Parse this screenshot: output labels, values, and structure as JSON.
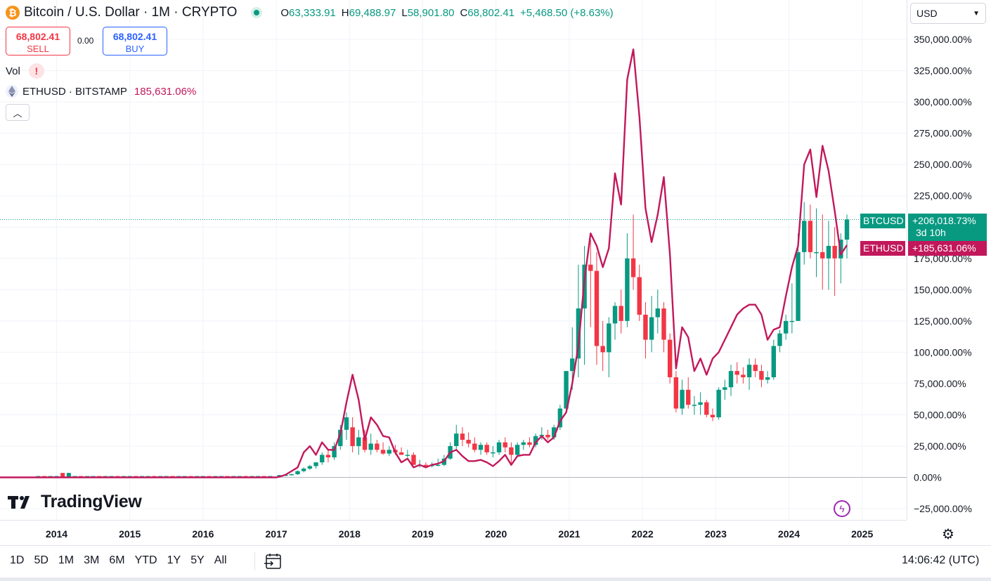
{
  "header": {
    "title": "Bitcoin / U.S. Dollar · 1M · CRYPTO",
    "logo_icon": "bitcoin-logo-icon",
    "ohlc": {
      "o_label": "O",
      "o_value": "63,333.91",
      "h_label": "H",
      "h_value": "69,488.97",
      "l_label": "L",
      "l_value": "58,901.80",
      "c_label": "C",
      "c_value": "68,802.41",
      "change": "+5,468.50 (+8.63%)"
    }
  },
  "trade": {
    "sell_price": "68,802.41",
    "sell_label": "SELL",
    "spread": "0.00",
    "buy_price": "68,802.41",
    "buy_label": "BUY"
  },
  "indicators": {
    "vol_label": "Vol",
    "vol_warning": "!",
    "compare_symbol": "ETHUSD · BITSTAMP",
    "compare_value": "185,631.06%"
  },
  "currency_select": {
    "value": "USD"
  },
  "price_tags": {
    "btc_symbol": "BTCUSD",
    "btc_value": "+206,018.73%",
    "btc_countdown": "3d 10h",
    "eth_symbol": "ETHUSD",
    "eth_value": "+185,631.06%"
  },
  "branding": {
    "name": "TradingView"
  },
  "footer": {
    "ranges": [
      "1D",
      "5D",
      "1M",
      "3M",
      "6M",
      "YTD",
      "1Y",
      "5Y",
      "All"
    ],
    "clock": "14:06:42 (UTC)"
  },
  "colors": {
    "up": "#089981",
    "down": "#f23645",
    "eth_line": "#c2185b",
    "grid": "#f0f3fa"
  },
  "chart_data": {
    "type": "line",
    "scale": "percent",
    "ylim": [
      -25000,
      350000
    ],
    "y_ticks": [
      "350,000.00%",
      "325,000.00%",
      "300,000.00%",
      "275,000.00%",
      "250,000.00%",
      "225,000.00%",
      "200,000.00%",
      "175,000.00%",
      "150,000.00%",
      "125,000.00%",
      "100,000.00%",
      "75,000.00%",
      "50,000.00%",
      "25,000.00%",
      "0.00%",
      "−25,000.00%"
    ],
    "x_ticks": [
      "2014",
      "2015",
      "2016",
      "2017",
      "2018",
      "2019",
      "2020",
      "2021",
      "2022",
      "2023",
      "2024",
      "2025"
    ],
    "grid": true,
    "series": [
      {
        "name": "BTCUSD",
        "style": "candlestick",
        "last_value": 206018.73,
        "x": [
          "2017-01",
          "2017-02",
          "2017-03",
          "2017-04",
          "2017-05",
          "2017-06",
          "2017-07",
          "2017-08",
          "2017-09",
          "2017-10",
          "2017-11",
          "2017-12",
          "2018-01",
          "2018-02",
          "2018-03",
          "2018-04",
          "2018-05",
          "2018-06",
          "2018-07",
          "2018-08",
          "2018-09",
          "2018-10",
          "2018-11",
          "2018-12",
          "2019-01",
          "2019-02",
          "2019-03",
          "2019-04",
          "2019-05",
          "2019-06",
          "2019-07",
          "2019-08",
          "2019-09",
          "2019-10",
          "2019-11",
          "2019-12",
          "2020-01",
          "2020-02",
          "2020-03",
          "2020-04",
          "2020-05",
          "2020-06",
          "2020-07",
          "2020-08",
          "2020-09",
          "2020-10",
          "2020-11",
          "2020-12",
          "2021-01",
          "2021-02",
          "2021-03",
          "2021-04",
          "2021-05",
          "2021-06",
          "2021-07",
          "2021-08",
          "2021-09",
          "2021-10",
          "2021-11",
          "2021-12",
          "2022-01",
          "2022-02",
          "2022-03",
          "2022-04",
          "2022-05",
          "2022-06",
          "2022-07",
          "2022-08",
          "2022-09",
          "2022-10",
          "2022-11",
          "2022-12",
          "2023-01",
          "2023-02",
          "2023-03",
          "2023-04",
          "2023-05",
          "2023-06",
          "2023-07",
          "2023-08",
          "2023-09",
          "2023-10",
          "2023-11",
          "2023-12",
          "2024-01",
          "2024-02",
          "2024-03",
          "2024-04",
          "2024-05",
          "2024-06",
          "2024-07",
          "2024-08",
          "2024-09",
          "2024-10"
        ],
        "open": [
          1500,
          1800,
          2000,
          2500,
          5000,
          7000,
          9000,
          12000,
          18000,
          16000,
          25000,
          38000,
          40000,
          25000,
          32000,
          22000,
          27000,
          22000,
          19000,
          22000,
          20000,
          18000,
          18000,
          10000,
          10000,
          9000,
          10000,
          10000,
          15000,
          25000,
          35000,
          30000,
          27000,
          22000,
          26000,
          20000,
          20000,
          28000,
          24000,
          18000,
          26000,
          28000,
          26000,
          33000,
          34000,
          32000,
          40000,
          55000,
          85000,
          95000,
          135000,
          170000,
          165000,
          105000,
          100000,
          123000,
          137000,
          125000,
          175000,
          160000,
          130000,
          110000,
          128000,
          135000,
          110000,
          80000,
          55000,
          70000,
          58000,
          58000,
          60000,
          50000,
          48000,
          70000,
          72000,
          85000,
          82000,
          80000,
          90000,
          85000,
          78000,
          80000,
          105000,
          115000,
          125000,
          125000,
          180000,
          205000,
          180000,
          180000,
          175000,
          185000,
          175000,
          190000
        ],
        "high": [
          2000,
          2500,
          3000,
          5500,
          8000,
          10000,
          12000,
          20000,
          22000,
          28000,
          42000,
          52000,
          48000,
          38000,
          38000,
          35000,
          30000,
          28000,
          25000,
          26000,
          24000,
          22000,
          20000,
          14000,
          12000,
          12000,
          15000,
          18000,
          28000,
          42000,
          40000,
          36000,
          32000,
          28000,
          28000,
          25000,
          30000,
          32000,
          28000,
          28000,
          30000,
          32000,
          35000,
          40000,
          38000,
          42000,
          58000,
          85000,
          120000,
          170000,
          185000,
          190000,
          180000,
          125000,
          128000,
          140000,
          150000,
          195000,
          210000,
          170000,
          140000,
          145000,
          150000,
          140000,
          115000,
          85000,
          78000,
          80000,
          65000,
          68000,
          62000,
          55000,
          72000,
          78000,
          90000,
          92000,
          88000,
          95000,
          95000,
          90000,
          85000,
          110000,
          118000,
          130000,
          155000,
          195000,
          220000,
          218000,
          215000,
          210000,
          205000,
          200000,
          195000,
          210000
        ],
        "low": [
          1000,
          1500,
          1800,
          2000,
          4000,
          6000,
          7000,
          10000,
          12000,
          14000,
          22000,
          30000,
          20000,
          18000,
          20000,
          18000,
          20000,
          18000,
          17000,
          18000,
          18000,
          16000,
          10000,
          8000,
          7500,
          8000,
          9000,
          9000,
          14000,
          22000,
          25000,
          24000,
          20000,
          18000,
          18000,
          16000,
          18000,
          20000,
          10000,
          16000,
          22000,
          24000,
          24000,
          30000,
          30000,
          30000,
          38000,
          52000,
          70000,
          80000,
          90000,
          120000,
          90000,
          85000,
          80000,
          110000,
          115000,
          120000,
          150000,
          125000,
          95000,
          100000,
          115000,
          100000,
          75000,
          52000,
          50000,
          55000,
          50000,
          50000,
          48000,
          45000,
          46000,
          62000,
          65000,
          75000,
          75000,
          70000,
          80000,
          72000,
          75000,
          78000,
          100000,
          110000,
          115000,
          125000,
          170000,
          175000,
          160000,
          150000,
          150000,
          145000,
          155000,
          175000
        ],
        "close": [
          1800,
          2000,
          2500,
          5000,
          7000,
          9000,
          12000,
          18000,
          16000,
          25000,
          38000,
          48000,
          25000,
          32000,
          22000,
          27000,
          22000,
          19000,
          22000,
          20000,
          18000,
          18000,
          10000,
          10000,
          9000,
          10000,
          10000,
          15000,
          25000,
          35000,
          30000,
          27000,
          22000,
          26000,
          20000,
          20000,
          28000,
          24000,
          18000,
          26000,
          28000,
          26000,
          33000,
          34000,
          32000,
          40000,
          55000,
          85000,
          95000,
          135000,
          170000,
          165000,
          105000,
          100000,
          123000,
          137000,
          125000,
          175000,
          160000,
          130000,
          110000,
          128000,
          135000,
          110000,
          80000,
          55000,
          70000,
          58000,
          58000,
          60000,
          50000,
          48000,
          70000,
          72000,
          85000,
          82000,
          80000,
          90000,
          85000,
          78000,
          80000,
          105000,
          115000,
          125000,
          125000,
          180000,
          205000,
          180000,
          180000,
          175000,
          185000,
          175000,
          190000,
          206018
        ]
      },
      {
        "name": "ETHUSD",
        "style": "line",
        "last_value": 185631.06,
        "x": [
          "2017-01",
          "2017-02",
          "2017-03",
          "2017-04",
          "2017-05",
          "2017-06",
          "2017-07",
          "2017-08",
          "2017-09",
          "2017-10",
          "2017-11",
          "2017-12",
          "2018-01",
          "2018-02",
          "2018-03",
          "2018-04",
          "2018-05",
          "2018-06",
          "2018-07",
          "2018-08",
          "2018-09",
          "2018-10",
          "2018-11",
          "2018-12",
          "2019-01",
          "2019-02",
          "2019-03",
          "2019-04",
          "2019-05",
          "2019-06",
          "2019-07",
          "2019-08",
          "2019-09",
          "2019-10",
          "2019-11",
          "2019-12",
          "2020-01",
          "2020-02",
          "2020-03",
          "2020-04",
          "2020-05",
          "2020-06",
          "2020-07",
          "2020-08",
          "2020-09",
          "2020-10",
          "2020-11",
          "2020-12",
          "2021-01",
          "2021-02",
          "2021-03",
          "2021-04",
          "2021-05",
          "2021-06",
          "2021-07",
          "2021-08",
          "2021-09",
          "2021-10",
          "2021-11",
          "2021-12",
          "2022-01",
          "2022-02",
          "2022-03",
          "2022-04",
          "2022-05",
          "2022-06",
          "2022-07",
          "2022-08",
          "2022-09",
          "2022-10",
          "2022-11",
          "2022-12",
          "2023-01",
          "2023-02",
          "2023-03",
          "2023-04",
          "2023-05",
          "2023-06",
          "2023-07",
          "2023-08",
          "2023-09",
          "2023-10",
          "2023-11",
          "2023-12",
          "2024-01",
          "2024-02",
          "2024-03",
          "2024-04",
          "2024-05",
          "2024-06",
          "2024-07",
          "2024-08",
          "2024-09",
          "2024-10"
        ],
        "y": [
          500,
          2000,
          5000,
          8000,
          20000,
          25000,
          18000,
          28000,
          22000,
          22000,
          35000,
          60000,
          82000,
          62000,
          30000,
          48000,
          42000,
          33000,
          32000,
          20000,
          12000,
          15000,
          8000,
          10000,
          8000,
          10000,
          11000,
          13000,
          20000,
          22000,
          17000,
          13000,
          13000,
          14000,
          12000,
          9000,
          13000,
          18000,
          10000,
          17000,
          18000,
          18000,
          28000,
          33000,
          28000,
          32000,
          45000,
          52000,
          75000,
          105000,
          158000,
          195000,
          185000,
          168000,
          183000,
          243000,
          218000,
          318000,
          342000,
          288000,
          215000,
          188000,
          210000,
          240000,
          178000,
          87000,
          120000,
          112000,
          85000,
          95000,
          82000,
          95000,
          100000,
          110000,
          120000,
          130000,
          135000,
          138000,
          138000,
          130000,
          110000,
          118000,
          120000,
          145000,
          168000,
          185000,
          250000,
          262000,
          224000,
          265000,
          245000,
          213000,
          178000,
          185631
        ]
      }
    ]
  }
}
